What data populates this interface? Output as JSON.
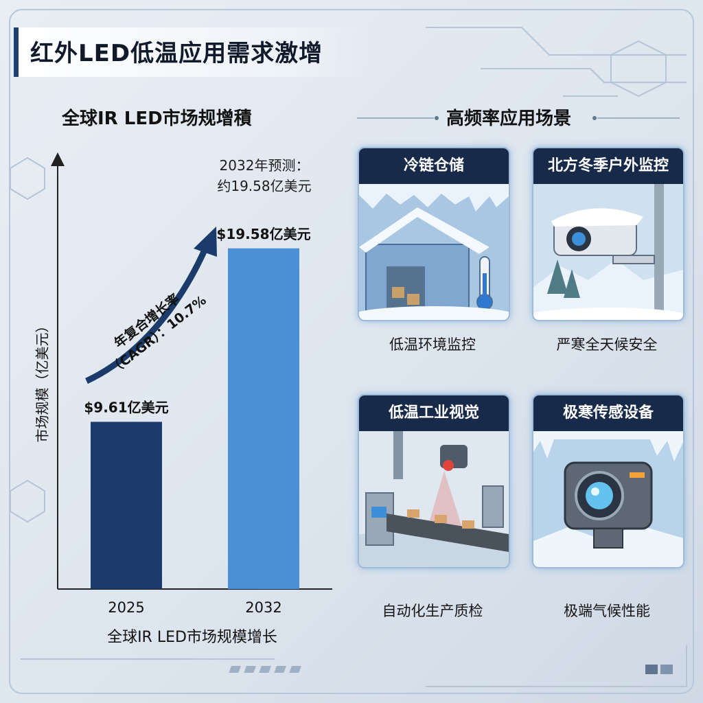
{
  "title": "红外LED低温应用需求激增",
  "chart": {
    "heading": "全球IR LED市场规增積",
    "forecast_line1": "2032年预测：",
    "forecast_line2": "约19.58亿美元",
    "cagr_line1": "年复合增长率",
    "cagr_line2": "（CAGR）：10.7%",
    "ylabel": "市场规模（亿美元）",
    "xlabel": "全球IR LED市场规模增长"
  },
  "chart_data": {
    "type": "bar",
    "categories": [
      "2025",
      "2032"
    ],
    "values": [
      9.61,
      19.58
    ],
    "value_labels": [
      "$9.61亿美元",
      "$19.58亿美元"
    ],
    "colors": [
      "#1b3b6b",
      "#4b90d4"
    ],
    "title": "全球IR LED市场规增積",
    "xlabel": "全球IR LED市场规模增长",
    "ylabel": "市场规模（亿美元）",
    "ylim": [
      0,
      24.7
    ],
    "annotation": "年复合增长率（CAGR）：10.7%",
    "grid": false
  },
  "scenarios": {
    "heading": "高频率应用场景",
    "cards": [
      {
        "title": "冷链仓储",
        "caption": "低温环境监控",
        "icon": "frozen-warehouse-icon"
      },
      {
        "title": "北方冬季户外监控",
        "caption": "严寒全天候安全",
        "icon": "snow-camera-icon"
      },
      {
        "title": "低温工业视觉",
        "caption": "自动化生产质检",
        "icon": "conveyor-camera-icon"
      },
      {
        "title": "极寒传感设备",
        "caption": "极端气候性能",
        "icon": "ice-sensor-icon"
      }
    ]
  }
}
